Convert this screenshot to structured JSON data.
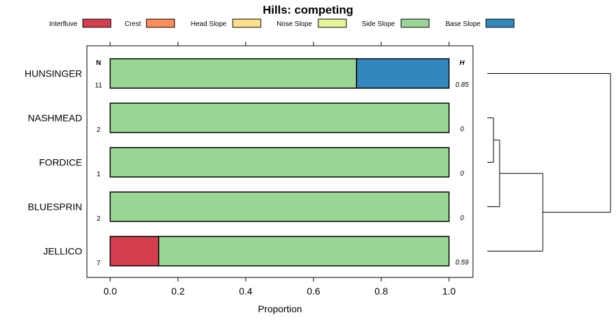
{
  "chart_data": {
    "type": "bar",
    "title": "Hills: competing",
    "xlabel": "Proportion",
    "ylabel": "",
    "xlim": [
      -0.07,
      1.07
    ],
    "x_ticks": [
      0.0,
      0.2,
      0.4,
      0.6,
      0.8,
      1.0
    ],
    "x_tick_labels": [
      "0.0",
      "0.2",
      "0.4",
      "0.6",
      "0.8",
      "1.0"
    ],
    "legend": [
      {
        "name": "Interfluve",
        "color": "#d53e4f"
      },
      {
        "name": "Crest",
        "color": "#fc8d59"
      },
      {
        "name": "Head Slope",
        "color": "#fee08b"
      },
      {
        "name": "Nose Slope",
        "color": "#e6f598"
      },
      {
        "name": "Side Slope",
        "color": "#99d594"
      },
      {
        "name": "Base Slope",
        "color": "#3288bd"
      }
    ],
    "legend_position": "top",
    "n_header": "N",
    "h_header": "H",
    "categories": [
      "HUNSINGER",
      "NASHMEAD",
      "FORDICE",
      "BLUESPRIN",
      "JELLICO"
    ],
    "n_values": [
      "11",
      "2",
      "1",
      "2",
      "7"
    ],
    "h_values": [
      "0.85",
      "0",
      "0",
      "0",
      "0.59"
    ],
    "series": [
      {
        "name": "Interfluve",
        "values": [
          0,
          0,
          0,
          0,
          0.143
        ]
      },
      {
        "name": "Crest",
        "values": [
          0,
          0,
          0,
          0,
          0
        ]
      },
      {
        "name": "Head Slope",
        "values": [
          0,
          0,
          0,
          0,
          0
        ]
      },
      {
        "name": "Nose Slope",
        "values": [
          0,
          0,
          0,
          0,
          0
        ]
      },
      {
        "name": "Side Slope",
        "values": [
          0.727,
          1,
          1,
          1,
          0.857
        ]
      },
      {
        "name": "Base Slope",
        "values": [
          0.273,
          0,
          0,
          0,
          0
        ]
      }
    ],
    "dendrogram": {
      "leaves": [
        "HUNSINGER",
        "NASHMEAD",
        "FORDICE",
        "BLUESPRIN",
        "JELLICO"
      ],
      "merges": [
        {
          "a": "NASHMEAD",
          "b": "FORDICE",
          "height": 0.05
        },
        {
          "a": "NASHMEAD+FORDICE",
          "b": "BLUESPRIN",
          "height": 0.1
        },
        {
          "a": "NASHMEAD+FORDICE+BLUESPRIN",
          "b": "JELLICO",
          "height": 0.45
        },
        {
          "a": "HUNSINGER",
          "b": "rest",
          "height": 1.0
        }
      ]
    }
  }
}
